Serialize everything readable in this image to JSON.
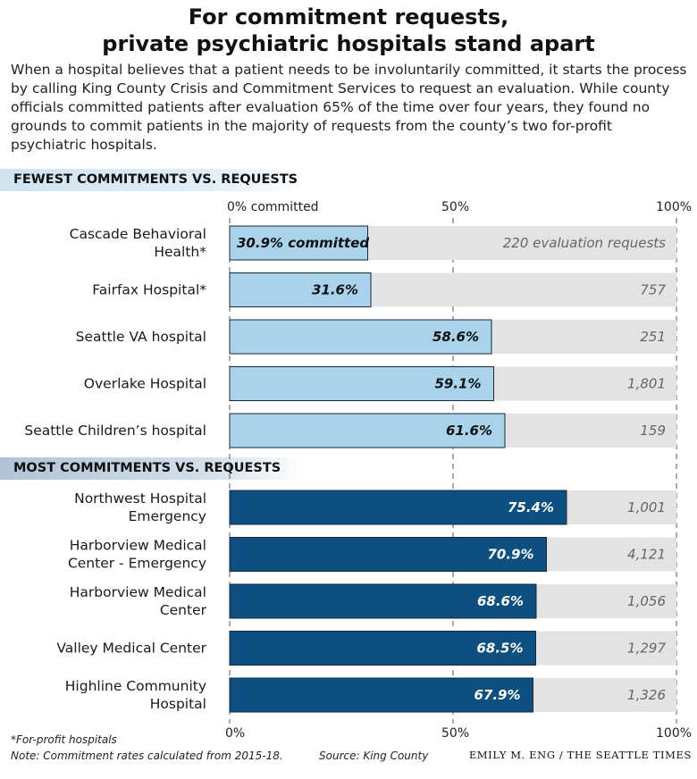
{
  "title_line1": "For commitment requests,",
  "title_line2": "private psychiatric hospitals stand apart",
  "intro": "When a hospital believes that a patient needs to be involuntarily committed, it starts the process by calling King County Crisis and Commitment Services to request an evaluation. While county officials committed patients after evaluation 65% of the time over four years, they found no grounds to commit patients in the majority of requests from the county’s two for-profit psychiatric hospitals.",
  "sections": {
    "fewest": "FEWEST COMMITMENTS VS. REQUESTS",
    "most": "MOST COMMITMENTS VS. REQUESTS"
  },
  "axis_top": {
    "zero": "0% committed",
    "half": "50%",
    "full": "100%"
  },
  "axis_bottom": {
    "zero": "0%",
    "half": "50%",
    "full": "100%"
  },
  "notes": {
    "forprofit": "*For-profit hospitals",
    "rates": "Note: Commitment rates calculated from 2015-18.",
    "source": "Source: King County",
    "credit": "EMILY M. ENG / THE SEATTLE TIMES"
  },
  "colors": {
    "light_bar": "#a8d3ea",
    "dark_bar": "#0d4f80",
    "track": "#e3e3e3"
  },
  "chart_data": {
    "type": "bar",
    "orientation": "horizontal",
    "xlim": [
      0,
      100
    ],
    "unit": "% committed",
    "groups": [
      {
        "name": "FEWEST COMMITMENTS VS. REQUESTS",
        "bars": [
          {
            "label": [
              "Cascade Behavioral",
              "Health*"
            ],
            "value": 30.9,
            "value_label": "30.9% committed",
            "requests_label": "220 evaluation requests",
            "requests": 220
          },
          {
            "label": [
              "Fairfax Hospital*"
            ],
            "value": 31.6,
            "value_label": "31.6%",
            "requests_label": "757",
            "requests": 757
          },
          {
            "label": [
              "Seattle VA hospital"
            ],
            "value": 58.6,
            "value_label": "58.6%",
            "requests_label": "251",
            "requests": 251
          },
          {
            "label": [
              "Overlake Hospital"
            ],
            "value": 59.1,
            "value_label": "59.1%",
            "requests_label": "1,801",
            "requests": 1801
          },
          {
            "label": [
              "Seattle Children’s hospital"
            ],
            "value": 61.6,
            "value_label": "61.6%",
            "requests_label": "159",
            "requests": 159
          }
        ]
      },
      {
        "name": "MOST COMMITMENTS VS. REQUESTS",
        "bars": [
          {
            "label": [
              "Northwest Hospital",
              "Emergency"
            ],
            "value": 75.4,
            "value_label": "75.4%",
            "requests_label": "1,001",
            "requests": 1001
          },
          {
            "label": [
              "Harborview Medical",
              "Center - Emergency"
            ],
            "value": 70.9,
            "value_label": "70.9%",
            "requests_label": "4,121",
            "requests": 4121
          },
          {
            "label": [
              "Harborview Medical",
              "Center"
            ],
            "value": 68.6,
            "value_label": "68.6%",
            "requests_label": "1,056",
            "requests": 1056
          },
          {
            "label": [
              "Valley Medical Center"
            ],
            "value": 68.5,
            "value_label": "68.5%",
            "requests_label": "1,297",
            "requests": 1297
          },
          {
            "label": [
              "Highline Community",
              "Hospital"
            ],
            "value": 67.9,
            "value_label": "67.9%",
            "requests_label": "1,326",
            "requests": 1326
          }
        ]
      }
    ]
  }
}
